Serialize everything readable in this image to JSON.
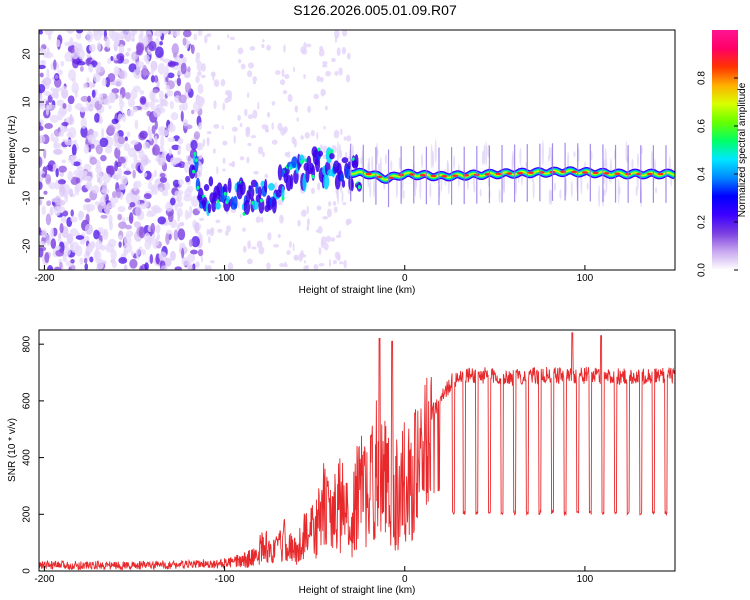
{
  "title": "S126.2026.005.01.09.R07",
  "chart_data": [
    {
      "type": "heatmap",
      "xlabel": "Height of straight line (km)",
      "ylabel": "Frequency (Hz)",
      "xlim": [
        -203,
        150
      ],
      "ylim": [
        -25,
        25
      ],
      "xticks": [
        -200,
        -100,
        0,
        100
      ],
      "yticks": [
        -20,
        -10,
        0,
        10,
        20
      ],
      "colorbar": {
        "label": "Normalized spectral amplitude",
        "range": [
          0,
          1
        ],
        "ticks": [
          "0.0",
          "0.2",
          "0.4",
          "0.6",
          "0.8"
        ],
        "colors": [
          "#ffffff",
          "#c9a8f0",
          "#7b3fe0",
          "#3b00ff",
          "#0000ff",
          "#0088ff",
          "#00e8ff",
          "#00ff66",
          "#66ff00",
          "#d8ff00",
          "#ffb000",
          "#ff3300",
          "#ff0066",
          "#ff1493"
        ]
      },
      "signal_track": [
        {
          "x": -115,
          "f": -10.0
        },
        {
          "x": -100,
          "f": -9.0
        },
        {
          "x": -85,
          "f": -9.0
        },
        {
          "x": -75,
          "f": -9.5
        },
        {
          "x": -65,
          "f": -6.0
        },
        {
          "x": -50,
          "f": -3.0
        },
        {
          "x": -35,
          "f": -4.5
        },
        {
          "x": -20,
          "f": -5.0
        },
        {
          "x": -10,
          "f": -6.0
        },
        {
          "x": 0,
          "f": -5.0
        },
        {
          "x": 20,
          "f": -5.5
        },
        {
          "x": 50,
          "f": -5.0
        },
        {
          "x": 90,
          "f": -4.5
        },
        {
          "x": 120,
          "f": -5.0
        },
        {
          "x": 150,
          "f": -5.0
        }
      ]
    },
    {
      "type": "line",
      "xlabel": "Height of straight line (km)",
      "ylabel": "SNR (10 * v/v)",
      "xlim": [
        -203,
        150
      ],
      "ylim": [
        0,
        850
      ],
      "xticks": [
        -200,
        -100,
        0,
        100
      ],
      "yticks": [
        0,
        200,
        400,
        600,
        800
      ],
      "color": "#e8292c",
      "series": [
        {
          "name": "SNR",
          "x": [
            -203,
            -180,
            -160,
            -140,
            -120,
            -105,
            -95,
            -85,
            -78,
            -72,
            -66,
            -60,
            -55,
            -50,
            -45,
            -40,
            -35,
            -30,
            -25,
            -20,
            -15,
            -10,
            -5,
            0,
            5,
            10,
            15,
            20,
            25,
            30,
            40,
            60,
            80,
            100,
            120,
            140,
            150
          ],
          "values": [
            20,
            20,
            20,
            20,
            22,
            30,
            40,
            60,
            120,
            90,
            150,
            80,
            200,
            180,
            300,
            250,
            320,
            200,
            400,
            350,
            500,
            400,
            350,
            420,
            450,
            500,
            560,
            600,
            660,
            690,
            690,
            685,
            690,
            690,
            685,
            690,
            690
          ],
          "floor_x": [
            5,
            60,
            150
          ],
          "floor_values": [
            300,
            205,
            205
          ],
          "peaks": [
            {
              "x": -14,
              "y": 820
            },
            {
              "x": -7,
              "y": 810
            },
            {
              "x": 93,
              "y": 840
            },
            {
              "x": 109,
              "y": 830
            }
          ],
          "dropouts_x": [
            27,
            33,
            40,
            47,
            54,
            61,
            68,
            75,
            82,
            89,
            96,
            103,
            110,
            117,
            124,
            131,
            138,
            145
          ],
          "dropout_level": 205
        }
      ]
    }
  ]
}
